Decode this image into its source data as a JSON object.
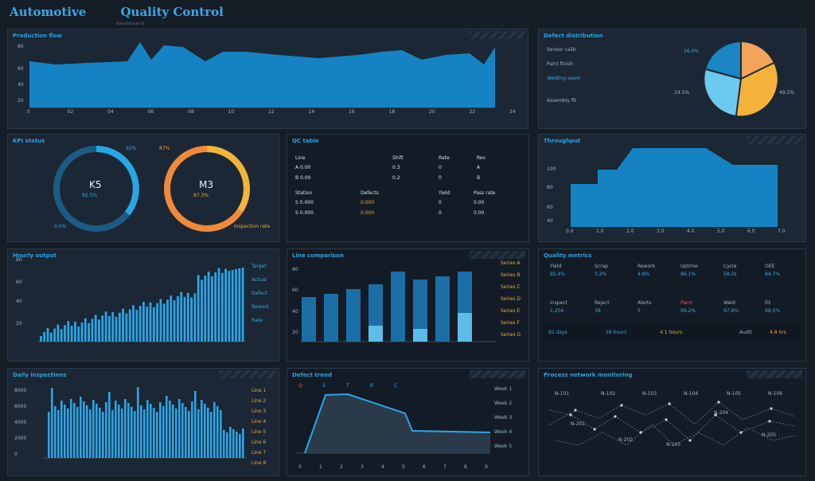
{
  "header": {
    "title_left": "Automotive",
    "title_right": "Quality Control",
    "subtitle": "dashboard"
  },
  "colors": {
    "accent": "#39a9e6",
    "orange": "#f2a53a",
    "bg": "#151d27"
  },
  "panels": {
    "area_top": {
      "title": "Production flow",
      "y_ticks": [
        "80",
        "60",
        "40",
        "20"
      ],
      "x_ticks": [
        "0",
        "02",
        "04",
        "06",
        "08",
        "10",
        "12",
        "14",
        "16",
        "18",
        "20",
        "22",
        "24"
      ]
    },
    "pie": {
      "title": "Defect distribution",
      "legend": [
        "Sensor calib",
        "Paint finish",
        "Welding seam",
        "Assembly fit"
      ],
      "label_top": "26.0%",
      "label_left": "24.5%",
      "label_right": "49.5%"
    },
    "gauges": {
      "title": "KPI status",
      "left_value": "K5",
      "left_sub": "92.5%",
      "left_top": "92%",
      "left_bottom": "0.0%",
      "right_value": "M3",
      "right_sub": "87.3%",
      "right_top": "87%",
      "right_bottom": "Inspection rate"
    },
    "table": {
      "title": "QC table",
      "header": [
        "Line",
        "Shift",
        "Rate",
        "Rev"
      ],
      "rows": [
        [
          "A 0.00",
          "0.3",
          "0",
          "A"
        ],
        [
          "B 0.00",
          "0.2",
          "0",
          "B"
        ]
      ],
      "header2": [
        "Station",
        "Defects",
        "Yield",
        "Pass rate"
      ],
      "rows2": [
        [
          "S 0.000",
          "0.000",
          "0",
          "0.00"
        ],
        [
          "S 0.000",
          "0.000",
          "0",
          "0.00"
        ]
      ]
    },
    "step": {
      "title": "Throughput",
      "y_ticks": [
        "100",
        "80",
        "60",
        "40"
      ],
      "x_ticks": [
        "0.0",
        "1.0",
        "2.0",
        "3.0",
        "4.0",
        "5.0",
        "6.0",
        "7.0"
      ]
    },
    "bars_mid": {
      "title": "Hourly output",
      "y_ticks": [
        "80",
        "60",
        "40",
        "20"
      ],
      "legend": [
        "Target",
        "Actual",
        "Defect",
        "Rework",
        "Rate"
      ]
    },
    "grouped": {
      "title": "Line comparison",
      "y_ticks": [
        "80",
        "60",
        "40",
        "20"
      ],
      "legend": [
        "Series A",
        "Series B",
        "Series C",
        "Series D",
        "Series E",
        "Series F",
        "Series G"
      ]
    },
    "metrics": {
      "title": "Quality metrics",
      "row1_labels": [
        "Yield",
        "Scrap",
        "Rework",
        "Uptime",
        "Cycle",
        "OEE"
      ],
      "row1_values": [
        "92.4%",
        "3.2%",
        "4.8%",
        "96.1%",
        "58.2s",
        "84.7%"
      ],
      "row2_labels": [
        "Inspect",
        "Reject",
        "Alerts",
        "Paint",
        "Weld",
        "Fit"
      ],
      "row2_values": [
        "1,204",
        "38",
        "5",
        "99.2%",
        "97.8%",
        "98.5%"
      ],
      "row3": [
        "92 days",
        "58 hours",
        "4.1 hours",
        "Audit",
        "4.8 hrs"
      ]
    },
    "bars_low": {
      "title": "Daily inspections",
      "y_ticks": [
        "8000",
        "6000",
        "4000",
        "2000",
        "0"
      ],
      "legend": [
        "Line 1",
        "Line 2",
        "Line 3",
        "Line 4",
        "Line 5",
        "Line 6",
        "Line 7",
        "Line 8"
      ]
    },
    "line_low": {
      "title": "Defect trend",
      "x_ticks": [
        "0",
        "1",
        "2",
        "3",
        "4",
        "5",
        "6",
        "7",
        "8",
        "9"
      ],
      "legend": [
        "Week 1",
        "Week 2",
        "Week 3",
        "Week 4",
        "Week 5"
      ],
      "legend_top": [
        "Q",
        "S",
        "T",
        "R",
        "C"
      ]
    },
    "network": {
      "title": "Process network monitoring",
      "nodes": [
        "N-101",
        "N-102",
        "N-103",
        "N-104",
        "N-105",
        "N-106",
        "N-201",
        "N-202",
        "N-203",
        "N-204",
        "N-205"
      ]
    }
  }
}
